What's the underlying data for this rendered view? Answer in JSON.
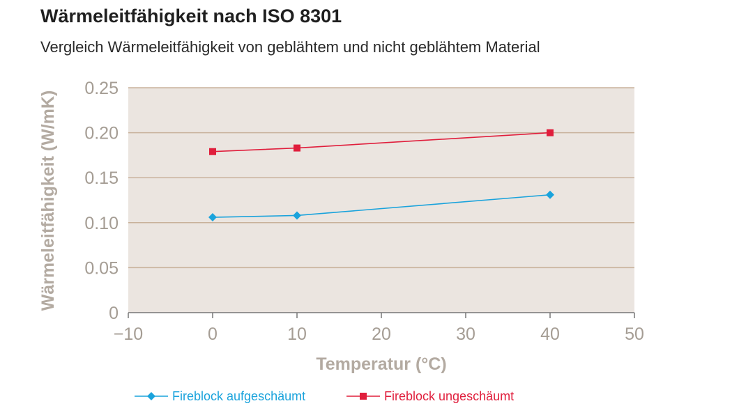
{
  "header": {
    "title": "Wärmeleitfähigkeit nach ISO 8301",
    "subtitle": "Vergleich Wärmeleitfähigkeit von geblähtem und nicht geblähtem Material"
  },
  "colors": {
    "plot_background": "#ebe5e0",
    "gridline": "#c8b19b",
    "axis_text": "#a59d94",
    "series_blue": "#1aa3dc",
    "series_red": "#e01e3c"
  },
  "chart_data": {
    "type": "line",
    "title": "Wärmeleitfähigkeit nach ISO 8301",
    "subtitle": "Vergleich Wärmeleitfähigkeit von geblähtem und nicht geblähtem Material",
    "xlabel": "Temperatur (°C)",
    "ylabel": "Wärmeleitfähigkeit (W/mK)",
    "xlim": [
      -10,
      50
    ],
    "ylim": [
      0,
      0.25
    ],
    "x_ticks": [
      -10,
      0,
      10,
      20,
      30,
      40,
      50
    ],
    "x_tick_labels": [
      "−10",
      "0",
      "10",
      "20",
      "30",
      "40",
      "50"
    ],
    "y_ticks": [
      0,
      0.05,
      0.1,
      0.15,
      0.2,
      0.25
    ],
    "y_tick_labels": [
      "0",
      "0.05",
      "0.10",
      "0.15",
      "0.20",
      "0.25"
    ],
    "grid": true,
    "legend_position": "bottom",
    "series": [
      {
        "name": "Fireblock aufgeschäumt",
        "color": "#1aa3dc",
        "marker": "diamond",
        "x": [
          0,
          10,
          40
        ],
        "y": [
          0.106,
          0.108,
          0.131
        ]
      },
      {
        "name": "Fireblock ungeschäumt",
        "color": "#e01e3c",
        "marker": "square",
        "x": [
          0,
          10,
          40
        ],
        "y": [
          0.179,
          0.183,
          0.2
        ]
      }
    ]
  }
}
